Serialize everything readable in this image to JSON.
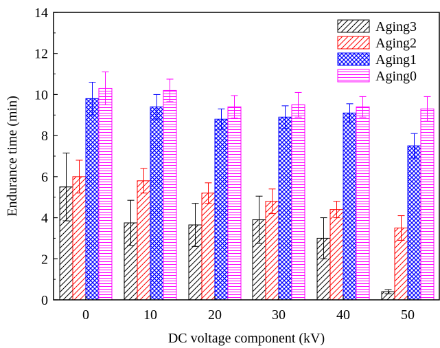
{
  "chart_data": {
    "type": "bar",
    "xlabel": "DC voltage component (kV)",
    "ylabel": "Endurance time (min)",
    "ylim": [
      0,
      14
    ],
    "yticks": [
      0,
      2,
      4,
      6,
      8,
      10,
      12,
      14
    ],
    "categories": [
      "0",
      "10",
      "20",
      "30",
      "40",
      "50"
    ],
    "legend_position": "top-right",
    "series": [
      {
        "name": "Aging3",
        "color": "#000000",
        "pattern": "diagonal-hatch",
        "values": [
          5.5,
          3.75,
          3.65,
          3.9,
          3.0,
          0.4
        ],
        "errors": [
          1.65,
          1.1,
          1.05,
          1.15,
          1.0,
          0.1
        ]
      },
      {
        "name": "Aging2",
        "color": "#ff0000",
        "pattern": "diagonal-hatch",
        "values": [
          6.0,
          5.8,
          5.2,
          4.8,
          4.4,
          3.5
        ],
        "errors": [
          0.8,
          0.6,
          0.5,
          0.6,
          0.4,
          0.6
        ]
      },
      {
        "name": "Aging1",
        "color": "#0000ff",
        "pattern": "crosshatch",
        "values": [
          9.8,
          9.4,
          8.8,
          8.9,
          9.1,
          7.5
        ],
        "errors": [
          0.8,
          0.6,
          0.5,
          0.55,
          0.45,
          0.6
        ]
      },
      {
        "name": "Aging0",
        "color": "#ff00ff",
        "pattern": "horizontal-lines",
        "values": [
          10.3,
          10.2,
          9.4,
          9.5,
          9.4,
          9.3
        ],
        "errors": [
          0.8,
          0.55,
          0.55,
          0.6,
          0.5,
          0.6
        ]
      }
    ]
  }
}
